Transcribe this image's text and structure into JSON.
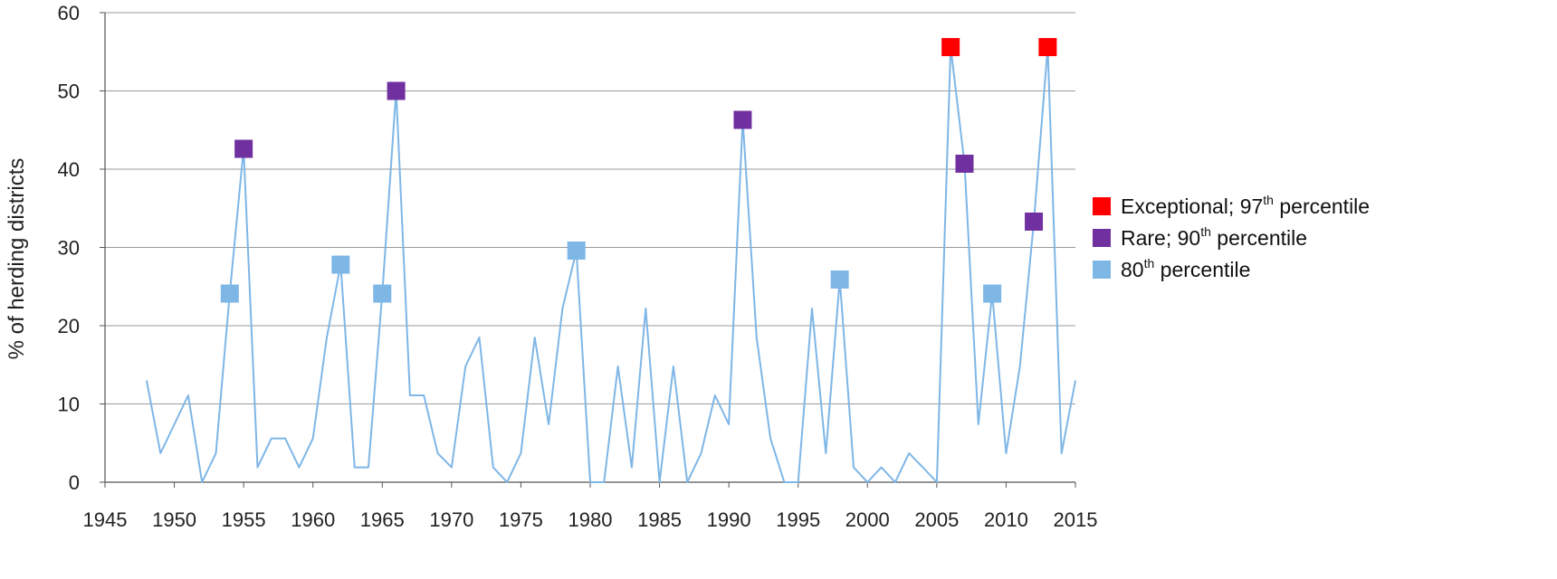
{
  "chart_data": {
    "type": "line",
    "title": "",
    "xlabel": "",
    "ylabel": "% of herding districts",
    "xlim": [
      1945,
      2015
    ],
    "ylim": [
      0,
      60
    ],
    "x_ticks": [
      "1945",
      "1950",
      "1955",
      "1960",
      "1965",
      "1970",
      "1975",
      "1980",
      "1985",
      "1990",
      "1995",
      "2000",
      "2005",
      "2010",
      "2015"
    ],
    "y_ticks": [
      "0",
      "10",
      "20",
      "30",
      "40",
      "50",
      "60"
    ],
    "grid": "horizontal",
    "legend_position": "right",
    "line_color": "#7EB6E6",
    "series": [
      {
        "x": [
          1948,
          1949,
          1950,
          1951,
          1952,
          1953,
          1954,
          1955,
          1956,
          1957,
          1958,
          1959,
          1960,
          1961,
          1962,
          1963,
          1964,
          1965,
          1966,
          1967,
          1968,
          1969,
          1970,
          1971,
          1972,
          1973,
          1974,
          1975,
          1976,
          1977,
          1978,
          1979,
          1980,
          1981,
          1982,
          1983,
          1984,
          1985,
          1986,
          1987,
          1988,
          1989,
          1990,
          1991,
          1992,
          1993,
          1994,
          1995,
          1996,
          1997,
          1998,
          1999,
          2000,
          2001,
          2002,
          2003,
          2004,
          2005,
          2006,
          2007,
          2008,
          2009,
          2010,
          2011,
          2012,
          2013,
          2014,
          2015
        ],
        "y": [
          13,
          3.7,
          7.4,
          11.1,
          0,
          3.7,
          24.1,
          42.6,
          1.9,
          5.6,
          5.6,
          1.9,
          5.6,
          18.5,
          27.8,
          1.9,
          1.9,
          24.1,
          50,
          11.1,
          11.1,
          3.7,
          1.9,
          14.8,
          18.5,
          1.9,
          0,
          3.7,
          18.5,
          7.4,
          22.2,
          29.6,
          0,
          0,
          14.8,
          1.9,
          22.2,
          0,
          14.8,
          0,
          3.7,
          11.1,
          7.4,
          46.3,
          18.5,
          5.6,
          0,
          0,
          22.2,
          3.7,
          25.9,
          1.9,
          0,
          1.9,
          0,
          3.7,
          1.9,
          0,
          55.6,
          40.7,
          7.4,
          24.1,
          3.7,
          14.8,
          33.3,
          55.6,
          3.7,
          13
        ]
      }
    ],
    "markers": [
      {
        "category": "80th percentile",
        "points": [
          [
            1954,
            24.1
          ],
          [
            1962,
            27.8
          ],
          [
            1965,
            24.1
          ],
          [
            1979,
            29.6
          ],
          [
            1998,
            25.9
          ],
          [
            2009,
            24.1
          ]
        ]
      },
      {
        "category": "Rare; 90th percentile",
        "points": [
          [
            1955,
            42.6
          ],
          [
            1966,
            50
          ],
          [
            1991,
            46.3
          ],
          [
            2007,
            40.7
          ],
          [
            2012,
            33.3
          ]
        ]
      },
      {
        "category": "Exceptional; 97th percentile",
        "points": [
          [
            2006,
            55.6
          ],
          [
            2013,
            55.6
          ]
        ]
      }
    ],
    "legend": [
      {
        "label": "Exceptional; 97",
        "sup": "th",
        "suffix": " percentile",
        "color": "#FF0000"
      },
      {
        "label": "Rare; 90",
        "sup": "th",
        "suffix": " percentile",
        "color": "#7030A0"
      },
      {
        "label": "80",
        "sup": "th",
        "suffix": " percentile",
        "color": "#7EB6E6"
      }
    ]
  }
}
